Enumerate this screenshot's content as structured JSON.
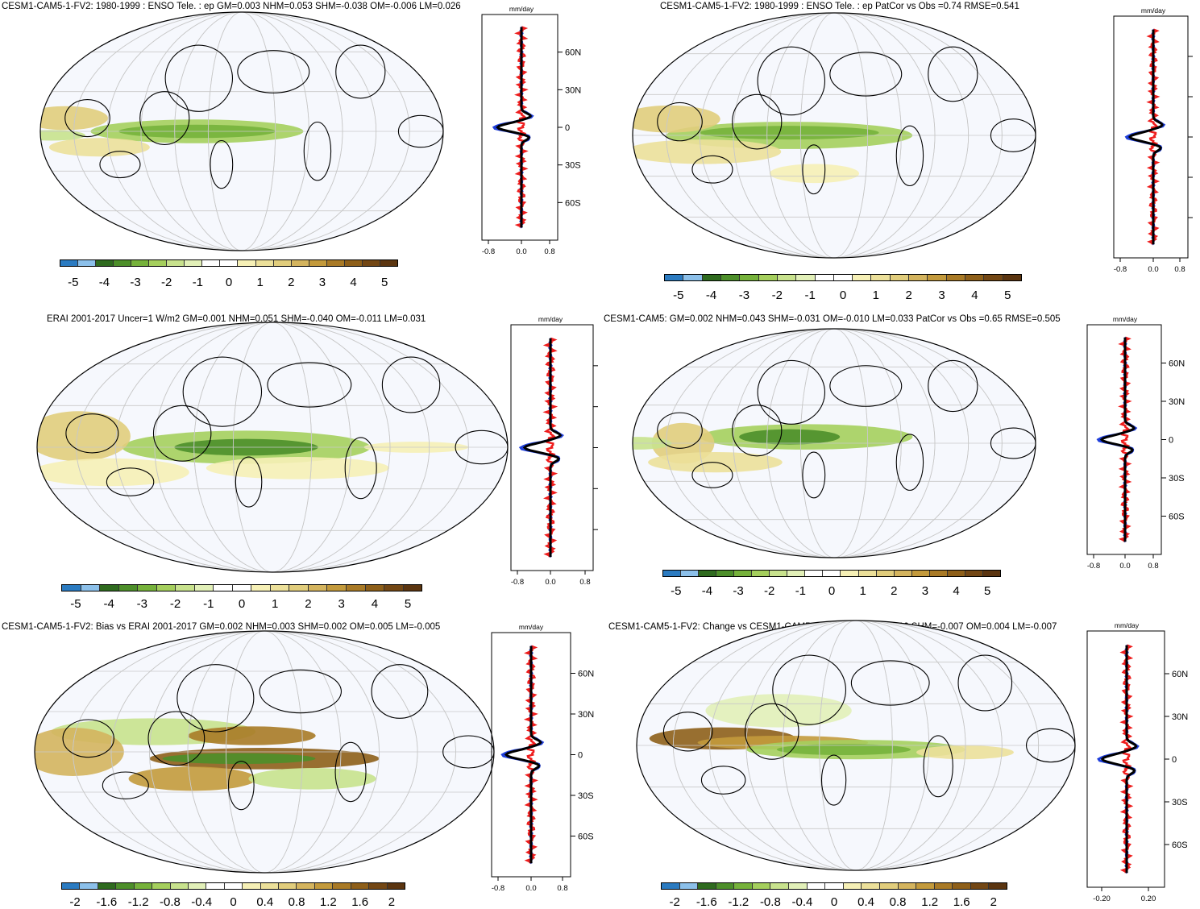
{
  "panels": [
    {
      "id": "p1",
      "title": "CESM1-CAM5-1-FV2: 1980-1999 : ENSO Tele. : ep GM=0.003 NHM=0.053 SHM=-0.038 OM=-0.006 LM=0.026",
      "units": "mm/day",
      "lat_labels": [
        "60N",
        "30N",
        "0",
        "30S",
        "60S"
      ],
      "profile_ticks": [
        "-0.8",
        "0.0",
        "0.8"
      ],
      "colorbar_labels": [
        "-5",
        "-4",
        "-3",
        "-2",
        "-1",
        "0",
        "1",
        "2",
        "3",
        "4",
        "5"
      ]
    },
    {
      "id": "p2",
      "title": "CESM1-CAM5-1-FV2: 1980-1999 : ENSO Tele. : ep PatCor vs Obs =0.74 RMSE=0.541",
      "units": "mm/day",
      "lat_labels": [],
      "profile_ticks": [
        "-0.8",
        "0.0",
        "0.8"
      ],
      "colorbar_labels": [
        "-5",
        "-4",
        "-3",
        "-2",
        "-1",
        "0",
        "1",
        "2",
        "3",
        "4",
        "5"
      ]
    },
    {
      "id": "p3",
      "title": "ERAI 2001-2017 Uncer=1 W/m2 GM=0.001 NHM=0.051 SHM=-0.040 OM=-0.011 LM=0.031",
      "units": "mm/day",
      "lat_labels": [
        "60N",
        "30N",
        "0",
        "30S",
        "60S"
      ],
      "profile_ticks": [
        "-0.8",
        "0.0",
        "0.8"
      ],
      "colorbar_labels": [
        "-5",
        "-4",
        "-3",
        "-2",
        "-1",
        "0",
        "1",
        "2",
        "3",
        "4",
        "5"
      ]
    },
    {
      "id": "p4",
      "title": "CESM1-CAM5: GM=0.002 NHM=0.043 SHM=-0.031 OM=-0.010 LM=0.033 PatCor vs Obs =0.65 RMSE=0.505",
      "units": "mm/day",
      "lat_labels": [
        "60N",
        "30N",
        "0",
        "30S",
        "60S"
      ],
      "profile_ticks": [
        "-0.8",
        "0.0",
        "0.8"
      ],
      "colorbar_labels": [
        "-5",
        "-4",
        "-3",
        "-2",
        "-1",
        "0",
        "1",
        "2",
        "3",
        "4",
        "5"
      ]
    },
    {
      "id": "p5",
      "title": "CESM1-CAM5-1-FV2: Bias vs ERAI 2001-2017 GM=0.002 NHM=0.003 SHM=0.002 OM=0.005 LM=-0.005",
      "units": "mm/day",
      "lat_labels": [
        "60N",
        "30N",
        "0",
        "30S",
        "60S"
      ],
      "profile_ticks": [
        "-0.8",
        "0.0",
        "0.8"
      ],
      "colorbar_labels": [
        "-2",
        "-1.6",
        "-1.2",
        "-0.8",
        "-0.4",
        "0",
        "0.4",
        "0.8",
        "1.2",
        "1.6",
        "2"
      ]
    },
    {
      "id": "p6",
      "title": "CESM1-CAM5-1-FV2: Change vs CESM1-CAM5 GM=0.001 NHM=0.010 SHM=-0.007 OM=0.004 LM=-0.007",
      "units": "mm/day",
      "lat_labels": [
        "60N",
        "30N",
        "0",
        "30S",
        "60S"
      ],
      "profile_ticks": [
        "-0.20",
        "0.20"
      ],
      "colorbar_labels": [
        "-2",
        "-1.6",
        "-1.2",
        "-0.8",
        "-0.4",
        "0",
        "0.4",
        "0.8",
        "1.2",
        "1.6",
        "2"
      ]
    }
  ],
  "colors": {
    "palette": [
      "#2b7bc1",
      "#8cc0ea",
      "#2f6b1f",
      "#4d8f2a",
      "#76b23b",
      "#a5cf5d",
      "#c8e28d",
      "#e2f0b8",
      "#ffffff",
      "#ffffff",
      "#f6f0b6",
      "#ece09a",
      "#e1cd7c",
      "#d4b45e",
      "#c39a3c",
      "#a97a26",
      "#8e5f19",
      "#734714",
      "#5b3510"
    ],
    "profile_model": "#000000",
    "profile_obs": "#1f3fdb",
    "profile_bias": "#ee1c1c"
  }
}
